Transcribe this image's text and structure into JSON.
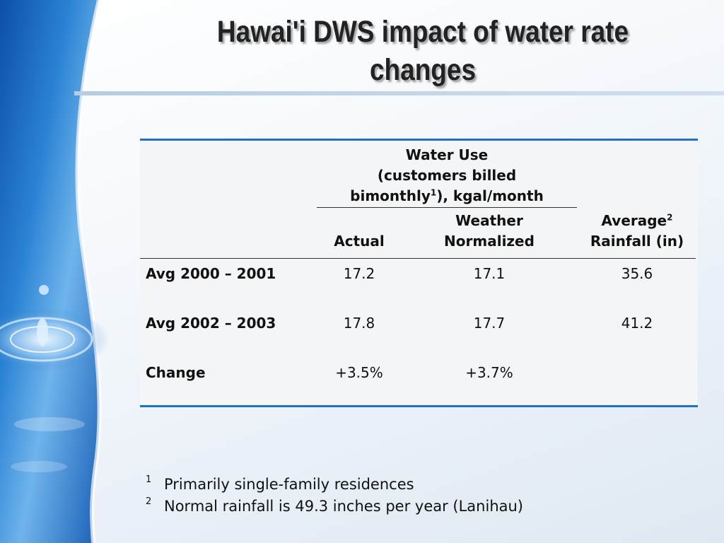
{
  "slide": {
    "title": "Hawai'i DWS impact of water rate changes"
  },
  "table": {
    "group_header": {
      "line1": "Water Use",
      "line2": "(customers billed",
      "line3_main": "bimonthly",
      "line3_sup": "1",
      "line3_tail": "), kgal/month"
    },
    "col_actual": "Actual",
    "col_weather_line1": "Weather",
    "col_weather_line2": "Normalized",
    "col_rain_line1": "Average",
    "col_rain_sup": "2",
    "col_rain_line2": "Rainfall (in)",
    "rows": [
      {
        "label": "Avg 2000 – 2001",
        "actual": "17.2",
        "weather": "17.1",
        "rainfall": "35.6"
      },
      {
        "label": "Avg 2002 – 2003",
        "actual": "17.8",
        "weather": "17.7",
        "rainfall": "41.2"
      },
      {
        "label": "Change",
        "actual": "+3.5%",
        "weather": "+3.7%",
        "rainfall": ""
      }
    ]
  },
  "footnotes": [
    {
      "num": "1",
      "text": "Primarily single-family residences"
    },
    {
      "num": "2",
      "text": "Normal rainfall is 49.3 inches per year (Lanihau)"
    }
  ],
  "colors": {
    "accent_rule": "#1f6fc5",
    "water_blue": "#1a64b8"
  }
}
